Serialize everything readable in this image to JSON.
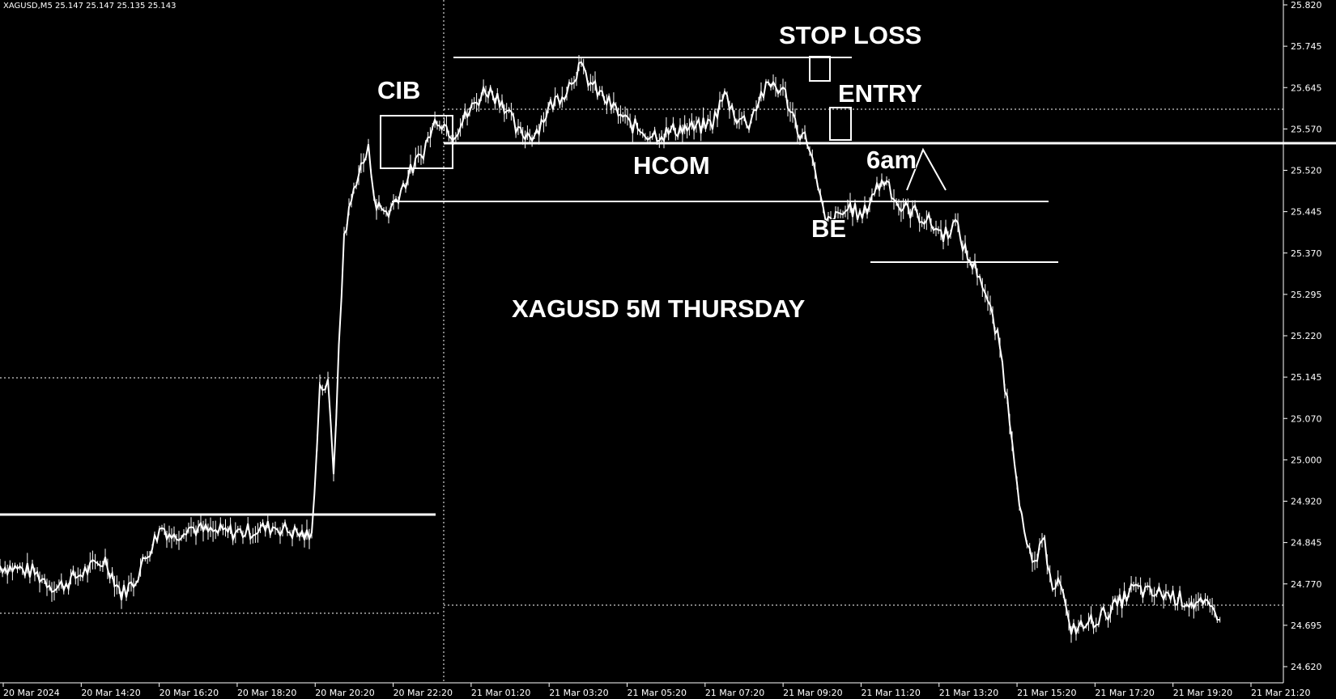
{
  "chart_data": {
    "type": "candlestick",
    "header_text": "XAGUSD,M5  25.147 25.147 25.135 25.143",
    "title": "XAGUSD 5M THURSDAY",
    "ylim": [
      24.63,
      25.83
    ],
    "y_ticks": [
      "25.820",
      "25.745",
      "25.645",
      "25.570",
      "25.520",
      "25.445",
      "25.370",
      "25.295",
      "25.220",
      "25.145",
      "25.070",
      "25.000",
      "24.920",
      "24.845",
      "24.770",
      "24.695",
      "24.620"
    ],
    "x_ticks": [
      "20 Mar 2024",
      "20 Mar 14:20",
      "20 Mar 16:20",
      "20 Mar 18:20",
      "20 Mar 20:20",
      "20 Mar 22:20",
      "21 Mar 01:20",
      "21 Mar 03:20",
      "21 Mar 05:20",
      "21 Mar 07:20",
      "21 Mar 09:20",
      "21 Mar 11:20",
      "21 Mar 13:20",
      "21 Mar 15:20",
      "21 Mar 17:20",
      "21 Mar 19:20",
      "21 Mar 21:20"
    ],
    "annotations": [
      "STOP LOSS",
      "CIB",
      "ENTRY",
      "HCOM",
      "6am",
      "BE"
    ],
    "price_path": [
      [
        0,
        24.83
      ],
      [
        40,
        24.82
      ],
      [
        70,
        24.79
      ],
      [
        105,
        24.82
      ],
      [
        130,
        24.84
      ],
      [
        150,
        24.78
      ],
      [
        165,
        24.8
      ],
      [
        185,
        24.86
      ],
      [
        200,
        24.9
      ],
      [
        215,
        24.88
      ],
      [
        230,
        24.9
      ],
      [
        260,
        24.89
      ],
      [
        300,
        24.89
      ],
      [
        340,
        24.9
      ],
      [
        385,
        24.88
      ],
      [
        395,
        25.15
      ],
      [
        405,
        25.15
      ],
      [
        412,
        25.0
      ],
      [
        425,
        25.42
      ],
      [
        440,
        25.52
      ],
      [
        455,
        25.57
      ],
      [
        465,
        25.47
      ],
      [
        480,
        25.46
      ],
      [
        495,
        25.5
      ],
      [
        510,
        25.54
      ],
      [
        520,
        25.56
      ],
      [
        540,
        25.63
      ],
      [
        560,
        25.6
      ],
      [
        580,
        25.64
      ],
      [
        600,
        25.68
      ],
      [
        620,
        25.66
      ],
      [
        640,
        25.6
      ],
      [
        660,
        25.6
      ],
      [
        680,
        25.65
      ],
      [
        700,
        25.68
      ],
      [
        715,
        25.72
      ],
      [
        735,
        25.68
      ],
      [
        755,
        25.65
      ],
      [
        775,
        25.62
      ],
      [
        800,
        25.6
      ],
      [
        820,
        25.6
      ],
      [
        840,
        25.61
      ],
      [
        860,
        25.61
      ],
      [
        880,
        25.62
      ],
      [
        895,
        25.67
      ],
      [
        910,
        25.63
      ],
      [
        925,
        25.62
      ],
      [
        940,
        25.67
      ],
      [
        955,
        25.69
      ],
      [
        970,
        25.67
      ],
      [
        985,
        25.61
      ],
      [
        1000,
        25.58
      ],
      [
        1010,
        25.5
      ],
      [
        1020,
        25.44
      ],
      [
        1035,
        25.45
      ],
      [
        1050,
        25.47
      ],
      [
        1065,
        25.45
      ],
      [
        1080,
        25.5
      ],
      [
        1095,
        25.52
      ],
      [
        1110,
        25.47
      ],
      [
        1130,
        25.46
      ],
      [
        1150,
        25.44
      ],
      [
        1165,
        25.42
      ],
      [
        1180,
        25.44
      ],
      [
        1195,
        25.38
      ],
      [
        1210,
        25.35
      ],
      [
        1220,
        25.3
      ],
      [
        1235,
        25.22
      ],
      [
        1250,
        25.06
      ],
      [
        1265,
        24.88
      ],
      [
        1275,
        24.83
      ],
      [
        1290,
        24.87
      ],
      [
        1300,
        24.8
      ],
      [
        1310,
        24.8
      ],
      [
        1320,
        24.72
      ],
      [
        1335,
        24.72
      ],
      [
        1360,
        24.74
      ],
      [
        1380,
        24.76
      ],
      [
        1400,
        24.79
      ],
      [
        1420,
        24.78
      ],
      [
        1440,
        24.78
      ],
      [
        1460,
        24.77
      ],
      [
        1480,
        24.76
      ],
      [
        1500,
        24.75
      ],
      [
        1510,
        24.74
      ]
    ]
  }
}
